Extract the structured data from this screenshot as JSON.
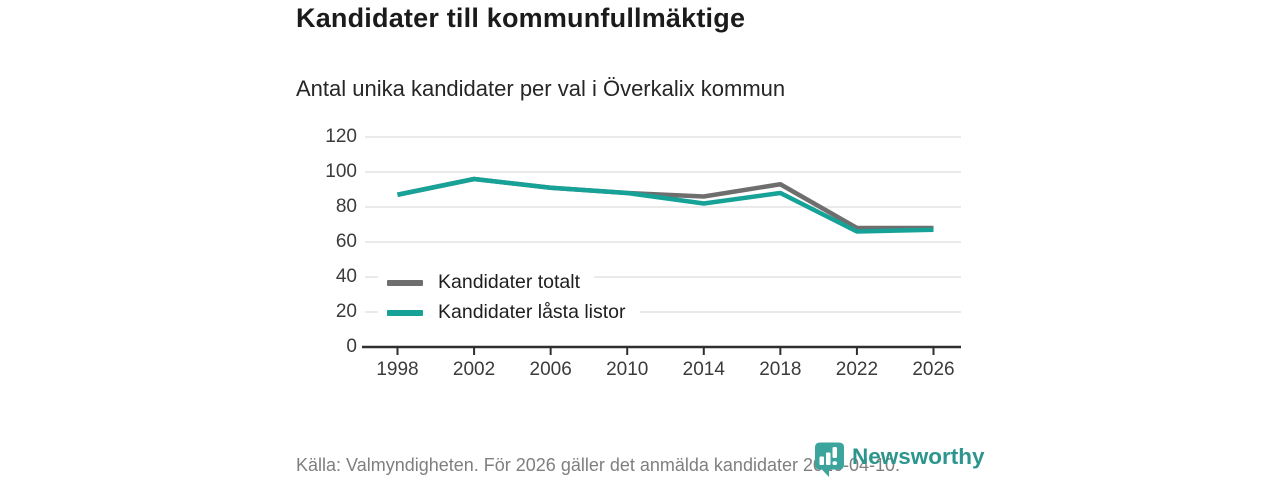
{
  "header": {
    "title": "Kandidater till kommunfullmäktige",
    "subtitle": "Antal unika kandidater per val i Överkalix kommun"
  },
  "chart_data": {
    "type": "line",
    "categories": [
      "1998",
      "2002",
      "2006",
      "2010",
      "2014",
      "2018",
      "2022",
      "2026"
    ],
    "series": [
      {
        "name": "Kandidater totalt",
        "color": "#6e6e6e",
        "values": [
          87,
          96,
          91,
          88,
          86,
          93,
          68,
          68
        ]
      },
      {
        "name": "Kandidater låsta listor",
        "color": "#17a298",
        "values": [
          87,
          96,
          91,
          88,
          82,
          88,
          66,
          67
        ]
      }
    ],
    "ylim": [
      0,
      120
    ],
    "y_ticks": [
      0,
      20,
      40,
      60,
      80,
      100,
      120
    ],
    "grid": true,
    "legend_position": "inside-bottom-left",
    "gridline_color": "#e3e3e3",
    "axis_color": "#2f2f2f"
  },
  "footer": {
    "source": "Källa: Valmyndigheten. För 2026 gäller det anmälda kandidater 2026-04-10."
  },
  "brand": {
    "name": "Newsworthy",
    "icon": "newsworthy-chart-bubble-icon",
    "icon_color": "#3ba59d",
    "text_color": "#2b958e"
  }
}
